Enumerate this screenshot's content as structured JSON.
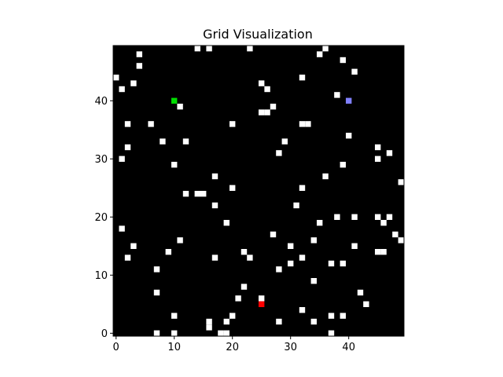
{
  "chart_data": {
    "type": "heatmap",
    "title": "Grid Visualization",
    "xlabel": "",
    "ylabel": "",
    "grid_size": [
      50,
      50
    ],
    "xlim": [
      -0.5,
      49.5
    ],
    "ylim": [
      -0.5,
      49.5
    ],
    "x_ticks": [
      0,
      10,
      20,
      30,
      40
    ],
    "y_ticks": [
      0,
      10,
      20,
      30,
      40
    ],
    "x_tick_labels": [
      "0",
      "10",
      "20",
      "30",
      "40"
    ],
    "y_tick_labels": [
      "0",
      "10",
      "20",
      "30",
      "40"
    ],
    "grid": false,
    "colors": {
      "background": "#000000",
      "obstacle": "#ffffff",
      "start": "#00dd00",
      "goal": "#ff0000",
      "agent": "#8080ff"
    },
    "start": [
      10,
      40
    ],
    "goal": [
      25,
      5
    ],
    "agent": [
      40,
      40
    ],
    "obstacles": [
      [
        14,
        49
      ],
      [
        16,
        49
      ],
      [
        23,
        49
      ],
      [
        36,
        49
      ],
      [
        4,
        48
      ],
      [
        35,
        48
      ],
      [
        39,
        47
      ],
      [
        4,
        46
      ],
      [
        41,
        45
      ],
      [
        0,
        44
      ],
      [
        32,
        44
      ],
      [
        3,
        43
      ],
      [
        25,
        43
      ],
      [
        1,
        42
      ],
      [
        26,
        42
      ],
      [
        38,
        41
      ],
      [
        11,
        39
      ],
      [
        27,
        39
      ],
      [
        25,
        38
      ],
      [
        26,
        38
      ],
      [
        2,
        36
      ],
      [
        6,
        36
      ],
      [
        20,
        36
      ],
      [
        32,
        36
      ],
      [
        33,
        36
      ],
      [
        40,
        34
      ],
      [
        8,
        33
      ],
      [
        12,
        33
      ],
      [
        29,
        33
      ],
      [
        2,
        32
      ],
      [
        45,
        32
      ],
      [
        28,
        31
      ],
      [
        47,
        31
      ],
      [
        1,
        30
      ],
      [
        45,
        30
      ],
      [
        10,
        29
      ],
      [
        39,
        29
      ],
      [
        17,
        27
      ],
      [
        36,
        27
      ],
      [
        49,
        26
      ],
      [
        20,
        25
      ],
      [
        32,
        25
      ],
      [
        12,
        24
      ],
      [
        14,
        24
      ],
      [
        15,
        24
      ],
      [
        31,
        22
      ],
      [
        17,
        22
      ],
      [
        38,
        20
      ],
      [
        41,
        20
      ],
      [
        45,
        20
      ],
      [
        47,
        20
      ],
      [
        19,
        19
      ],
      [
        35,
        19
      ],
      [
        46,
        19
      ],
      [
        1,
        18
      ],
      [
        27,
        17
      ],
      [
        48,
        17
      ],
      [
        11,
        16
      ],
      [
        34,
        16
      ],
      [
        49,
        16
      ],
      [
        3,
        15
      ],
      [
        30,
        15
      ],
      [
        41,
        15
      ],
      [
        9,
        14
      ],
      [
        22,
        14
      ],
      [
        45,
        14
      ],
      [
        46,
        14
      ],
      [
        2,
        13
      ],
      [
        17,
        13
      ],
      [
        23,
        13
      ],
      [
        32,
        13
      ],
      [
        30,
        12
      ],
      [
        37,
        12
      ],
      [
        39,
        12
      ],
      [
        7,
        11
      ],
      [
        28,
        11
      ],
      [
        34,
        9
      ],
      [
        22,
        8
      ],
      [
        7,
        7
      ],
      [
        42,
        7
      ],
      [
        21,
        6
      ],
      [
        25,
        6
      ],
      [
        43,
        5
      ],
      [
        32,
        4
      ],
      [
        10,
        3
      ],
      [
        20,
        3
      ],
      [
        37,
        3
      ],
      [
        39,
        3
      ],
      [
        16,
        2
      ],
      [
        19,
        2
      ],
      [
        28,
        2
      ],
      [
        34,
        2
      ],
      [
        16,
        1
      ],
      [
        7,
        0
      ],
      [
        10,
        0
      ],
      [
        18,
        0
      ],
      [
        19,
        0
      ],
      [
        37,
        0
      ]
    ]
  }
}
